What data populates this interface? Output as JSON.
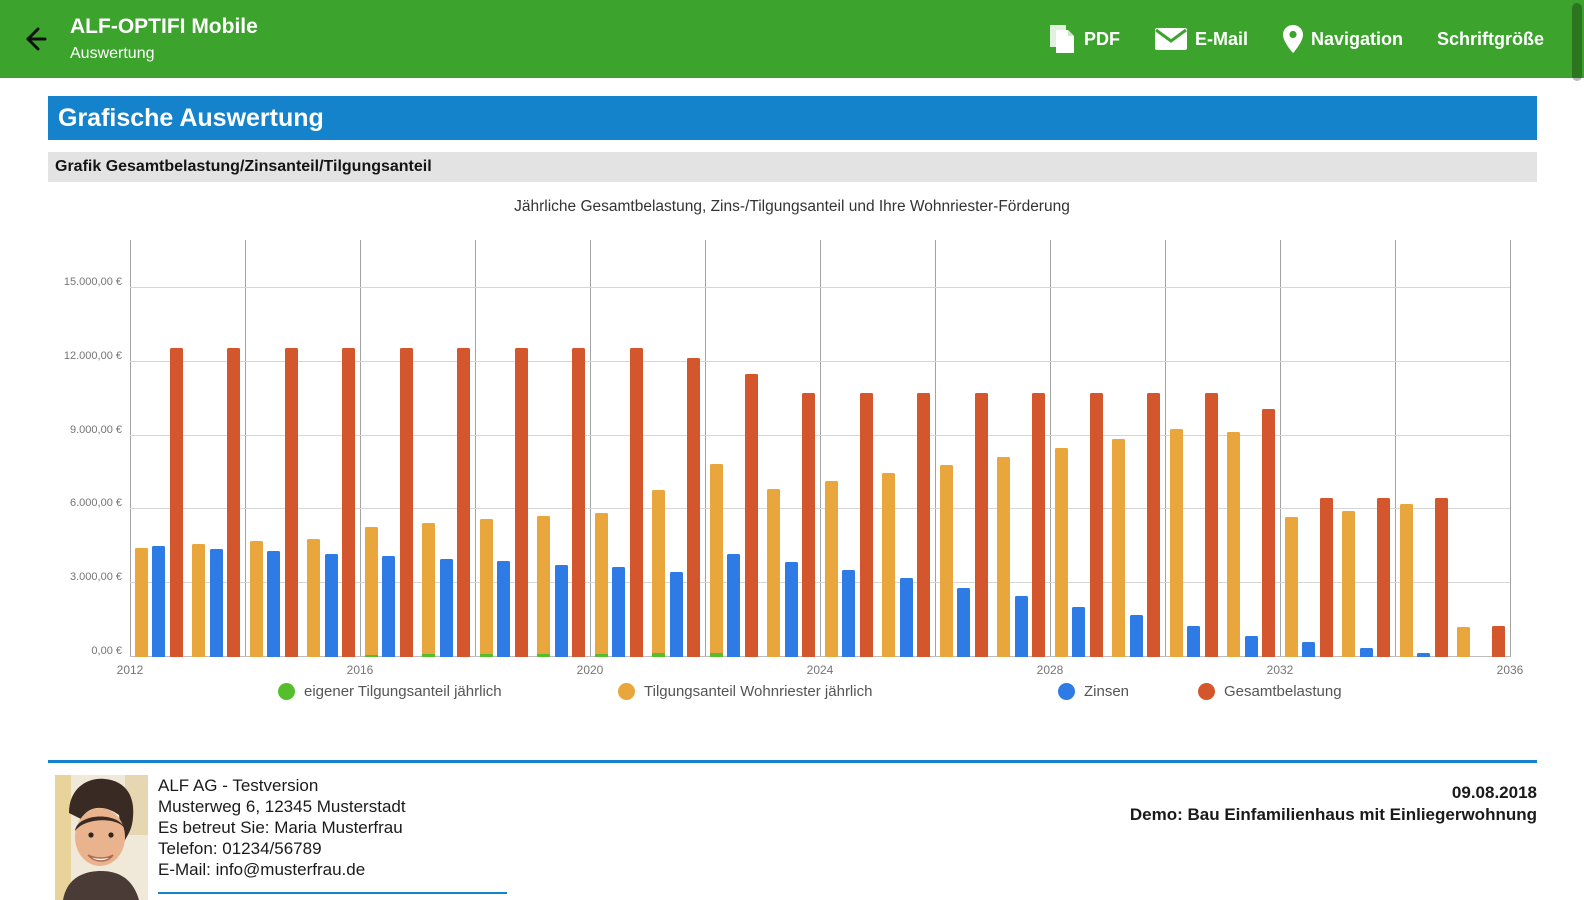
{
  "header": {
    "title": "ALF-OPTIFI Mobile",
    "subtitle": "Auswertung",
    "actions": {
      "pdf": "PDF",
      "email": "E-Mail",
      "navigation": "Navigation",
      "fontsize": "Schriftgröße"
    }
  },
  "section": {
    "title": "Grafische Auswertung",
    "subtitle": "Grafik Gesamtbelastung/Zinsanteil/Tilgungsanteil"
  },
  "chart_data": {
    "type": "bar",
    "title": "Jährliche Gesamtbelastung, Zins-/Tilgungsanteil und Ihre Wohnriester-Förderung",
    "xlabel": "",
    "ylabel": "",
    "ylim": [
      0,
      15000
    ],
    "grid": "horizontal and vertical on, vertical every 2 years",
    "legend_position": "bottom",
    "x": [
      2012,
      2013,
      2014,
      2015,
      2016,
      2017,
      2018,
      2019,
      2020,
      2021,
      2022,
      2023,
      2024,
      2025,
      2026,
      2027,
      2028,
      2029,
      2030,
      2031,
      2032,
      2033,
      2034,
      2035
    ],
    "series": [
      {
        "name": "eigener Tilgungsanteil jährlich",
        "color": "#56be2d",
        "stack": "tilgung",
        "values": [
          0,
          0,
          0,
          0,
          100,
          110,
          120,
          130,
          140,
          150,
          160,
          0,
          0,
          0,
          0,
          0,
          0,
          0,
          0,
          0,
          0,
          0,
          0,
          0
        ]
      },
      {
        "name": "Tilgungsanteil Wohnriester jährlich",
        "color": "#e8a63c",
        "stack": "tilgung",
        "values": [
          4450,
          4600,
          4700,
          4800,
          5200,
          5350,
          5500,
          5600,
          5700,
          6650,
          7700,
          6850,
          7150,
          7500,
          7800,
          8150,
          8500,
          8850,
          9250,
          9150,
          5700,
          5950,
          6200,
          1200
        ]
      },
      {
        "name": "Zinsen",
        "color": "#2e7be6",
        "stack": null,
        "values": [
          4500,
          4400,
          4300,
          4200,
          4100,
          4000,
          3900,
          3750,
          3650,
          3450,
          4200,
          3850,
          3550,
          3200,
          2800,
          2500,
          2050,
          1700,
          1250,
          850,
          600,
          350,
          150,
          0
        ]
      },
      {
        "name": "Gesamtbelastung",
        "color": "#d3562c",
        "stack": null,
        "values": [
          12550,
          12550,
          12550,
          12550,
          12550,
          12550,
          12550,
          12550,
          12550,
          12150,
          11500,
          10750,
          10750,
          10750,
          10750,
          10750,
          10750,
          10750,
          10750,
          10100,
          6450,
          6450,
          6450,
          1250
        ]
      }
    ],
    "y_ticks": [
      {
        "value": 0,
        "label": "0,00 €"
      },
      {
        "value": 3000,
        "label": "3.000,00 €"
      },
      {
        "value": 6000,
        "label": "6.000,00 €"
      },
      {
        "value": 9000,
        "label": "9.000,00 €"
      },
      {
        "value": 12000,
        "label": "12.000,00 €"
      },
      {
        "value": 15000,
        "label": "15.000,00 €"
      }
    ],
    "x_tick_labels": [
      "2012",
      "2016",
      "2020",
      "2024",
      "2028",
      "2032",
      "2036"
    ]
  },
  "footer": {
    "company": "ALF AG - Testversion",
    "address": "Musterweg 6, 12345 Musterstadt",
    "advisor": "Es betreut Sie: Maria Musterfrau",
    "phone": "Telefon: 01234/56789",
    "email": "E-Mail: info@musterfrau.de",
    "date": "09.08.2018",
    "demo": "Demo: Bau Einfamilienhaus mit Einliegerwohnung"
  },
  "colors": {
    "appbar_green": "#3ca32c",
    "banner_blue": "#1583cb",
    "banner_gray": "#e3e3e3",
    "divider_blue": "#1583cb"
  }
}
